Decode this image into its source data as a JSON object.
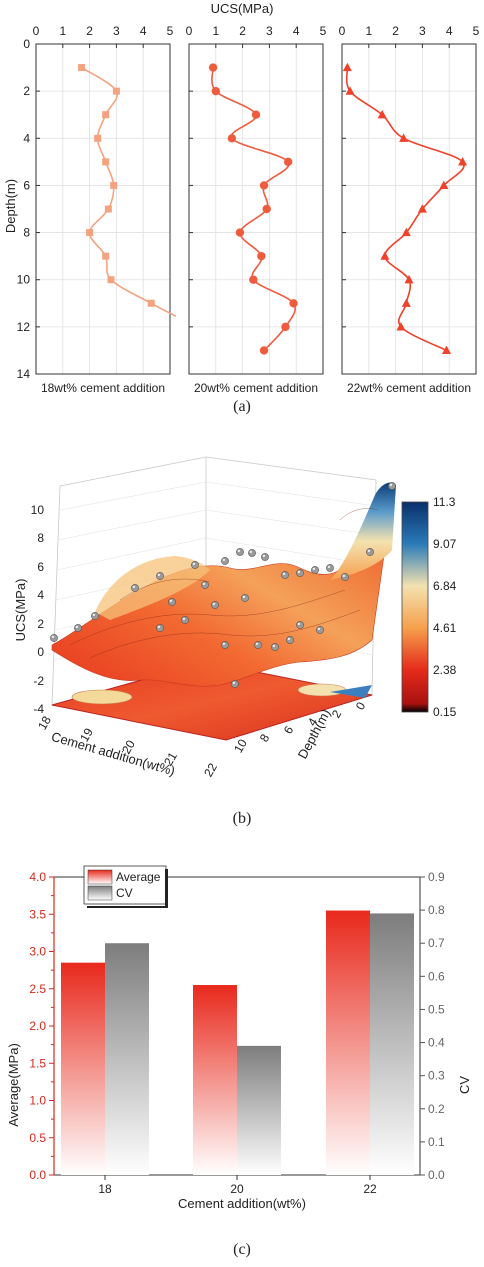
{
  "chart_data": [
    {
      "type": "line",
      "panel": "a",
      "caption": "(a)",
      "title": "UCS(MPa)",
      "ylabel": "Depth(m)",
      "xlim": [
        0,
        5
      ],
      "ylim": [
        0,
        14
      ],
      "y_reversed": true,
      "x_ticks": [
        0,
        1,
        2,
        3,
        4,
        5
      ],
      "y_ticks": [
        0,
        2,
        4,
        6,
        8,
        10,
        12,
        14
      ],
      "grid": true,
      "subplots": [
        {
          "label": "18wt% cement addition",
          "marker": "square",
          "color": "#f5a27e",
          "points": [
            [
              1.7,
              1
            ],
            [
              3.0,
              2
            ],
            [
              2.6,
              3
            ],
            [
              2.3,
              4
            ],
            [
              2.6,
              5
            ],
            [
              2.9,
              6
            ],
            [
              2.7,
              7
            ],
            [
              2.0,
              8
            ],
            [
              2.6,
              9
            ],
            [
              2.8,
              10
            ],
            [
              4.3,
              11
            ]
          ]
        },
        {
          "label": "20wt% cement addition",
          "marker": "circle",
          "color": "#ef5b3d",
          "points": [
            [
              0.9,
              1
            ],
            [
              1.0,
              2
            ],
            [
              2.5,
              3
            ],
            [
              1.6,
              4
            ],
            [
              3.7,
              5
            ],
            [
              2.8,
              6
            ],
            [
              2.9,
              7
            ],
            [
              1.9,
              8
            ],
            [
              2.7,
              9
            ],
            [
              2.4,
              10
            ],
            [
              3.9,
              11
            ],
            [
              3.6,
              12
            ],
            [
              2.8,
              13
            ]
          ]
        },
        {
          "label": "22wt% cement addition",
          "marker": "triangle",
          "color": "#f0412a",
          "points": [
            [
              0.2,
              1
            ],
            [
              0.3,
              2
            ],
            [
              1.5,
              3
            ],
            [
              2.3,
              4
            ],
            [
              4.5,
              5
            ],
            [
              3.8,
              6
            ],
            [
              3.0,
              7
            ],
            [
              2.4,
              8
            ],
            [
              1.6,
              9
            ],
            [
              2.5,
              10
            ],
            [
              2.4,
              11
            ],
            [
              2.2,
              12
            ],
            [
              3.9,
              13
            ]
          ]
        }
      ]
    },
    {
      "type": "surface",
      "panel": "b",
      "caption": "(b)",
      "zlabel": "UCS(MPa)",
      "xlabel": "Cement addition(wt%)",
      "ylabel": "Depth(m)",
      "z_ticks": [
        "10",
        "8",
        "6",
        "4",
        "2",
        "0",
        "-2",
        "-4"
      ],
      "x_ticks": [
        "18",
        "19",
        "20",
        "21",
        "22"
      ],
      "y_ticks": [
        "0",
        "2",
        "4",
        "6",
        "8",
        "10"
      ],
      "colorbar": {
        "labels": [
          "11.3",
          "9.07",
          "6.84",
          "4.61",
          "2.38",
          "0.15"
        ],
        "colors": [
          "#08306b",
          "#2b7bb9",
          "#f3e2b0",
          "#f6a04d",
          "#e52b1b",
          "#000000"
        ]
      }
    },
    {
      "type": "bar",
      "panel": "c",
      "caption": "(c)",
      "xlabel": "Cement addition(wt%)",
      "ylabel": "Average(MPa)",
      "y2label": "CV",
      "categories": [
        "18",
        "20",
        "22"
      ],
      "ylim": [
        0,
        4.0
      ],
      "y2lim": [
        0,
        0.9
      ],
      "y_ticks": [
        "0.0",
        "0.5",
        "1.0",
        "1.5",
        "2.0",
        "2.5",
        "3.0",
        "3.5",
        "4.0"
      ],
      "y2_ticks": [
        "0.0",
        "0.1",
        "0.2",
        "0.3",
        "0.4",
        "0.5",
        "0.6",
        "0.7",
        "0.8",
        "0.9"
      ],
      "legend_position": "top-left",
      "series": [
        {
          "name": "Average",
          "axis": "left",
          "color": "#e8291c",
          "values": [
            2.85,
            2.55,
            3.55
          ]
        },
        {
          "name": "CV",
          "axis": "right",
          "color": "#7d7d7d",
          "values": [
            0.7,
            0.39,
            0.79
          ]
        }
      ]
    }
  ]
}
